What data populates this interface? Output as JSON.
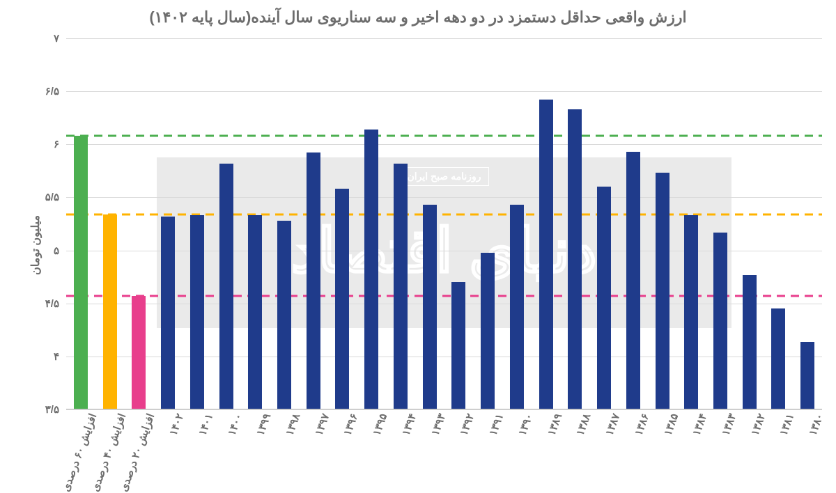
{
  "chart": {
    "type": "bar",
    "title": "ارزش واقعی حداقل دستمزد در دو دهه اخیر و سه سناریوی سال آینده(سال پایه ۱۴۰۲)",
    "y_axis_label": "میلیون تومان",
    "title_fontsize": 22,
    "title_color": "#6d6d6d",
    "label_fontsize": 16,
    "tick_fontsize": 15,
    "tick_color": "#6d6d6d",
    "background_color": "#ffffff",
    "grid_color": "#d9d9d9",
    "axis_color": "#bfbfbf",
    "ylim": [
      3.5,
      7.0
    ],
    "y_ticks": [
      {
        "v": 3.5,
        "label": "۳/۵"
      },
      {
        "v": 4.0,
        "label": "۴"
      },
      {
        "v": 4.5,
        "label": "۴/۵"
      },
      {
        "v": 5.0,
        "label": "۵"
      },
      {
        "v": 5.5,
        "label": "۵/۵"
      },
      {
        "v": 6.0,
        "label": "۶"
      },
      {
        "v": 6.5,
        "label": "۶/۵"
      },
      {
        "v": 7.0,
        "label": "۷"
      }
    ],
    "bar_width_ratio": 0.48,
    "reference_lines": [
      {
        "v": 4.57,
        "color": "#e83e8c",
        "dash": "12 8",
        "width": 3
      },
      {
        "v": 5.34,
        "color": "#ffb300",
        "dash": "12 8",
        "width": 3
      },
      {
        "v": 6.08,
        "color": "#4caf50",
        "dash": "12 8",
        "width": 3
      }
    ],
    "bars": [
      {
        "label": "۱۳۸۰",
        "value": 4.14,
        "color": "#1f3b8b"
      },
      {
        "label": "۱۳۸۱",
        "value": 4.45,
        "color": "#1f3b8b"
      },
      {
        "label": "۱۳۸۲",
        "value": 4.77,
        "color": "#1f3b8b"
      },
      {
        "label": "۱۳۸۳",
        "value": 5.17,
        "color": "#1f3b8b"
      },
      {
        "label": "۱۳۸۴",
        "value": 5.33,
        "color": "#1f3b8b"
      },
      {
        "label": "۱۳۸۵",
        "value": 5.73,
        "color": "#1f3b8b"
      },
      {
        "label": "۱۳۸۶",
        "value": 5.93,
        "color": "#1f3b8b"
      },
      {
        "label": "۱۳۸۷",
        "value": 5.6,
        "color": "#1f3b8b"
      },
      {
        "label": "۱۳۸۸",
        "value": 6.33,
        "color": "#1f3b8b"
      },
      {
        "label": "۱۳۸۹",
        "value": 6.42,
        "color": "#1f3b8b"
      },
      {
        "label": "۱۳۹۰",
        "value": 5.43,
        "color": "#1f3b8b"
      },
      {
        "label": "۱۳۹۱",
        "value": 4.98,
        "color": "#1f3b8b"
      },
      {
        "label": "۱۳۹۲",
        "value": 4.7,
        "color": "#1f3b8b"
      },
      {
        "label": "۱۳۹۳",
        "value": 5.43,
        "color": "#1f3b8b"
      },
      {
        "label": "۱۳۹۴",
        "value": 5.82,
        "color": "#1f3b8b"
      },
      {
        "label": "۱۳۹۵",
        "value": 6.14,
        "color": "#1f3b8b"
      },
      {
        "label": "۱۳۹۶",
        "value": 5.58,
        "color": "#1f3b8b"
      },
      {
        "label": "۱۳۹۷",
        "value": 5.92,
        "color": "#1f3b8b"
      },
      {
        "label": "۱۳۹۸",
        "value": 5.28,
        "color": "#1f3b8b"
      },
      {
        "label": "۱۳۹۹",
        "value": 5.33,
        "color": "#1f3b8b"
      },
      {
        "label": "۱۴۰۰",
        "value": 5.82,
        "color": "#1f3b8b"
      },
      {
        "label": "۱۴۰۱",
        "value": 5.33,
        "color": "#1f3b8b"
      },
      {
        "label": "۱۴۰۲",
        "value": 5.32,
        "color": "#1f3b8b"
      },
      {
        "label": "افزایش ۲۰ درصدی",
        "value": 4.57,
        "color": "#e83e8c"
      },
      {
        "label": "افزایش ۴۰ درصدی",
        "value": 5.34,
        "color": "#ffb300"
      },
      {
        "label": "افزایش ۶۰ درصدی",
        "value": 6.08,
        "color": "#4caf50"
      }
    ],
    "watermark": {
      "band_color": "#d9d9d9",
      "band_opacity": 0.55,
      "main_text": "دنیای اقتصاد",
      "box_text": "روزنامه صبح ایران",
      "stroke_color": "#ffffff"
    }
  }
}
